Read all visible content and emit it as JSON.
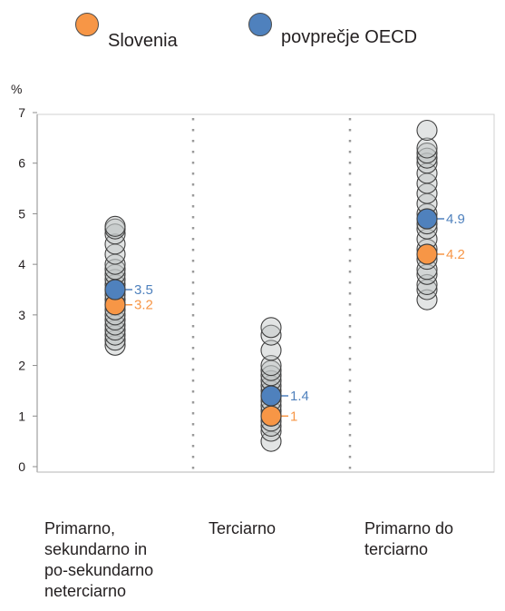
{
  "legend": {
    "slovenia": {
      "label": "Slovenia",
      "color": "#f79646"
    },
    "oecd": {
      "label": "povprečje OECD",
      "color": "#4f81bd"
    }
  },
  "chart_data": {
    "type": "scatter",
    "ylabel": "%",
    "ylim": [
      0,
      7
    ],
    "yticks": [
      "0",
      "1",
      "2",
      "3",
      "4",
      "5",
      "6",
      "7"
    ],
    "categories": [
      [
        "Primarno,",
        "sekundarno in",
        "po-sekundarno",
        "neterciarno"
      ],
      [
        "Terciarno"
      ],
      [
        "Primarno do",
        "terciarno"
      ]
    ],
    "countries": [
      [
        2.4,
        2.5,
        2.6,
        2.7,
        2.8,
        2.9,
        3.0,
        3.1,
        3.2,
        3.3,
        3.4,
        3.5,
        3.6,
        3.7,
        3.8,
        3.9,
        4.0,
        4.2,
        4.4,
        4.6,
        4.7,
        4.75
      ],
      [
        0.5,
        0.7,
        0.8,
        0.9,
        1.0,
        1.1,
        1.2,
        1.3,
        1.4,
        1.5,
        1.6,
        1.7,
        1.8,
        1.9,
        2.0,
        2.3,
        2.6,
        2.75
      ],
      [
        3.3,
        3.5,
        3.6,
        3.8,
        3.9,
        4.1,
        4.3,
        4.5,
        4.7,
        4.8,
        5.0,
        5.2,
        5.4,
        5.6,
        5.8,
        6.0,
        6.1,
        6.2,
        6.3,
        6.65
      ]
    ],
    "series": [
      {
        "name": "Slovenia",
        "values": [
          3.2,
          1.0,
          4.2
        ],
        "labels": [
          "3.2",
          "1",
          "4.2"
        ]
      },
      {
        "name": "povprečje OECD",
        "values": [
          3.5,
          1.4,
          4.9
        ],
        "labels": [
          "3.5",
          "1.4",
          "4.9"
        ]
      }
    ],
    "grid": false
  }
}
